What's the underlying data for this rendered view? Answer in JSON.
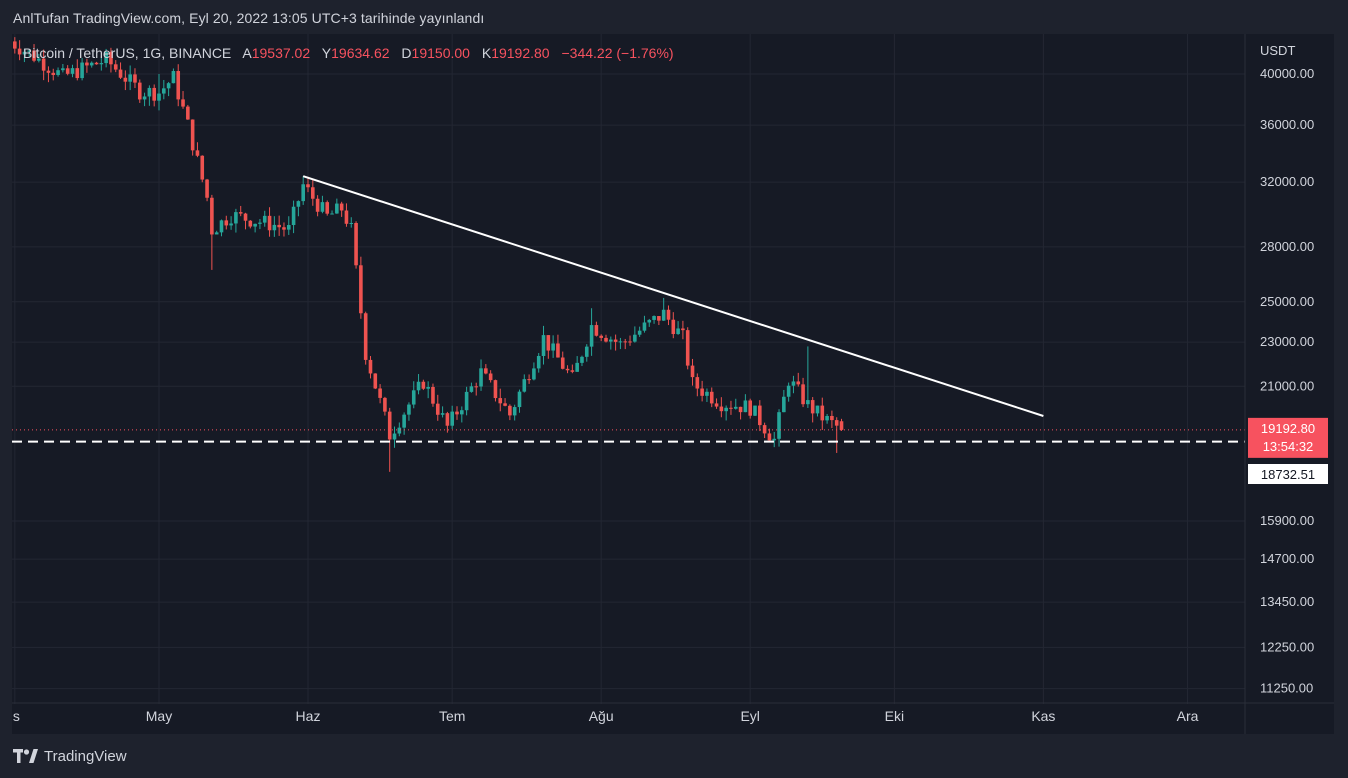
{
  "header": {
    "caption": "AnlTufan TradingView.com, Eyl 20, 2022 13:05 UTC+3 tarihinde yayınlandı"
  },
  "legend": {
    "symbol": "Bitcoin / TetherUS, 1G, BINANCE",
    "open_label": "A",
    "open": "19537.02",
    "high_label": "Y",
    "high": "19634.62",
    "low_label": "D",
    "low": "19150.00",
    "close_label": "K",
    "close": "19192.80",
    "change": "−344.22 (−1.76%)"
  },
  "footer": {
    "brand": "TradingView"
  },
  "colors": {
    "up": "#26a69a",
    "down": "#ef5350",
    "background": "#161a25",
    "frame": "#1e222d",
    "grid": "#232733",
    "text": "#d1d4dc",
    "trendline": "#ffffff",
    "price_badge": "#f7525f"
  },
  "chart_data": {
    "type": "candlestick",
    "title": "",
    "price_unit": "USDT",
    "y_scale": "log",
    "ylim": [
      10900,
      43000
    ],
    "y_ticks": [
      40000,
      36000,
      32000,
      28000,
      25000,
      23000,
      21000,
      15900,
      14700,
      13450,
      12250,
      11250
    ],
    "x_tick_labels": [
      "is",
      "May",
      "Haz",
      "Tem",
      "Ağu",
      "Eyl",
      "Eki",
      "Kas",
      "Ara"
    ],
    "x_tick_dates": [
      "2022-04-01",
      "2022-05-01",
      "2022-06-01",
      "2022-07-01",
      "2022-08-01",
      "2022-09-01",
      "2022-10-01",
      "2022-11-01",
      "2022-12-01"
    ],
    "x_range": [
      "2022-03-31",
      "2022-12-31"
    ],
    "last_price": {
      "value": 19192.8,
      "label": "19192.80",
      "countdown": "13:54:32"
    },
    "horizontal_level": {
      "value": 18732.51,
      "label": "18732.51"
    },
    "trendline": {
      "start": {
        "date": "2022-05-31",
        "price": 32400
      },
      "end": {
        "date": "2022-11-01",
        "price": 19750
      }
    },
    "anchor_candles": [
      {
        "date": "2022-05-01",
        "high": 40000
      },
      {
        "date": "2022-05-12",
        "low": 26700
      },
      {
        "date": "2022-05-31",
        "high": 32400
      },
      {
        "date": "2022-06-18",
        "low": 17600
      },
      {
        "date": "2022-07-30",
        "high": 24670
      },
      {
        "date": "2022-08-14",
        "high": 25200
      },
      {
        "date": "2022-09-07",
        "low": 18540
      },
      {
        "date": "2022-09-13",
        "high": 22800
      },
      {
        "date": "2022-09-20",
        "close": 19192.8
      }
    ]
  }
}
